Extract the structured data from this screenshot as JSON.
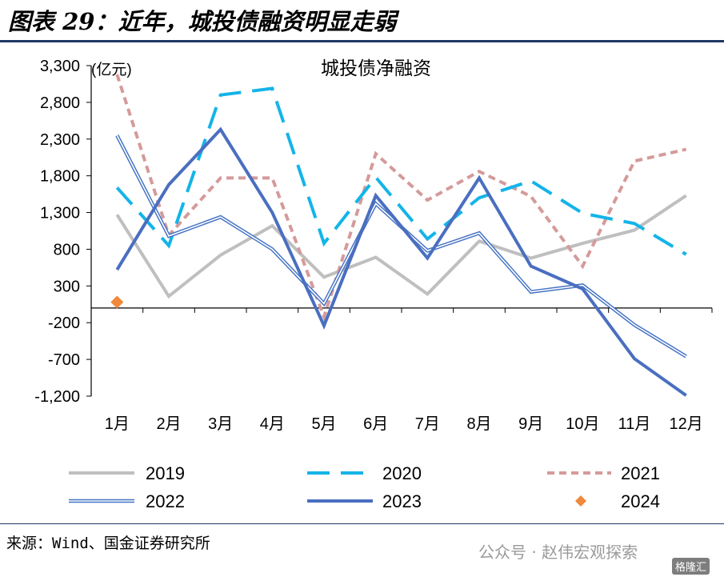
{
  "figure_title": "图表 29：近年，城投债融资明显走弱",
  "source": "来源：Wind、国金证券研究所",
  "watermark": "公众号 · 赵伟宏观探索",
  "watermark_badge": "格隆汇",
  "chart_data": {
    "type": "line",
    "title": "城投债净融资",
    "unit_label": "(亿元)",
    "categories": [
      "1月",
      "2月",
      "3月",
      "4月",
      "5月",
      "6月",
      "7月",
      "8月",
      "9月",
      "10月",
      "11月",
      "12月"
    ],
    "y_ticks": [
      "3,300",
      "2,800",
      "2,300",
      "1,800",
      "1,300",
      "800",
      "300",
      "-200",
      "-700",
      "-1,200"
    ],
    "ylim": [
      -1200,
      3300
    ],
    "grid": false,
    "legend_position": "bottom",
    "series": [
      {
        "name": "2019",
        "color": "#bfbfbf",
        "style": "solid-thick",
        "values": [
          1270,
          160,
          720,
          1120,
          420,
          690,
          190,
          910,
          680,
          880,
          1060,
          1530
        ]
      },
      {
        "name": "2020",
        "color": "#14b4e8",
        "style": "long-dash",
        "values": [
          1640,
          850,
          2900,
          2990,
          880,
          1780,
          940,
          1500,
          1730,
          1290,
          1150,
          730
        ]
      },
      {
        "name": "2021",
        "color": "#d59a9a",
        "style": "short-dash",
        "values": [
          3180,
          990,
          1770,
          1770,
          -120,
          2100,
          1470,
          1860,
          1520,
          570,
          2000,
          2160
        ]
      },
      {
        "name": "2022",
        "color": "#4472c4",
        "style": "double-line",
        "values": [
          2350,
          980,
          1240,
          800,
          60,
          1420,
          780,
          1020,
          220,
          310,
          -230,
          -660
        ]
      },
      {
        "name": "2023",
        "color": "#4a6fc0",
        "style": "solid-thick",
        "values": [
          520,
          1680,
          2430,
          1300,
          -240,
          1530,
          680,
          1770,
          570,
          260,
          -690,
          -1190
        ]
      },
      {
        "name": "2024",
        "color": "#f0893c",
        "style": "marker-diamond",
        "values": [
          80,
          null,
          null,
          null,
          null,
          null,
          null,
          null,
          null,
          null,
          null,
          null
        ]
      }
    ]
  }
}
